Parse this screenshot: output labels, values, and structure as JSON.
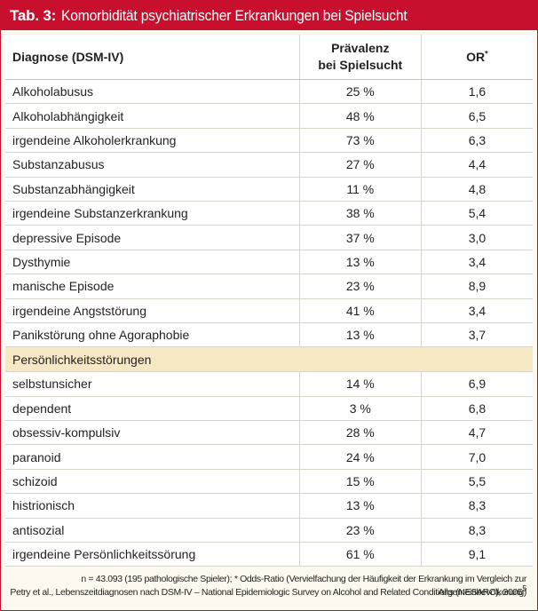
{
  "title": {
    "label": "Tab. 3:",
    "text": "Komorbidität psychiatrischer Erkrankungen bei Spielsucht"
  },
  "header": {
    "diagnosis": "Diagnose (DSM-IV)",
    "prevalence_line1": "Prävalenz",
    "prevalence_line2": "bei Spielsucht",
    "or": "OR",
    "or_mark": "*"
  },
  "rows_group1": [
    {
      "diagnosis": "Alkoholabusus",
      "prevalence": "25 %",
      "or": "1,6"
    },
    {
      "diagnosis": "Alkoholabhängigkeit",
      "prevalence": "48 %",
      "or": "6,5"
    },
    {
      "diagnosis": "irgendeine Alkoholerkrankung",
      "prevalence": "73 %",
      "or": "6,3"
    },
    {
      "diagnosis": "Substanzabusus",
      "prevalence": "27 %",
      "or": "4,4"
    },
    {
      "diagnosis": "Substanzabhängigkeit",
      "prevalence": "11 %",
      "or": "4,8"
    },
    {
      "diagnosis": "irgendeine Substanzerkrankung",
      "prevalence": "38 %",
      "or": "5,4"
    },
    {
      "diagnosis": "depressive Episode",
      "prevalence": "37 %",
      "or": "3,0"
    },
    {
      "diagnosis": "Dysthymie",
      "prevalence": "13 %",
      "or": "3,4"
    },
    {
      "diagnosis": "manische Episode",
      "prevalence": "23 %",
      "or": "8,9"
    },
    {
      "diagnosis": "irgendeine Angststörung",
      "prevalence": "41 %",
      "or": "3,4"
    },
    {
      "diagnosis": "Panikstörung ohne Agoraphobie",
      "prevalence": "13 %",
      "or": "3,7"
    }
  ],
  "section_label": "Persönlichkeitsstörungen",
  "rows_group2": [
    {
      "diagnosis": "selbstunsicher",
      "prevalence": "14 %",
      "or": "6,9"
    },
    {
      "diagnosis": "dependent",
      "prevalence": "3 %",
      "or": "6,8"
    },
    {
      "diagnosis": "obsessiv-kompulsiv",
      "prevalence": "28 %",
      "or": "4,7"
    },
    {
      "diagnosis": "paranoid",
      "prevalence": "24 %",
      "or": "7,0"
    },
    {
      "diagnosis": "schizoid",
      "prevalence": "15 %",
      "or": "5,5"
    },
    {
      "diagnosis": "histrionisch",
      "prevalence": "13 %",
      "or": "8,3"
    },
    {
      "diagnosis": "antisozial",
      "prevalence": "23 %",
      "or": "8,3"
    },
    {
      "diagnosis": "irgendeine Persönlichkeitssörung",
      "prevalence": "61 %",
      "or": "9,1"
    }
  ],
  "footnote": {
    "line1": "n = 43.093 (195 pathologische Spieler); * Odds-Ratio (Vervielfachung der Häufigkeit der Erkrankung im Vergleich zur Allgemeinbevölkerung)",
    "line2": "Petry et al., Lebenszeitdiagnosen nach DSM-IV – National Epidemiologic Survey on Alcohol and Related Conditions (NESARC), 2005",
    "line2_ref": "5"
  },
  "colors": {
    "title_bar": "#c8102e",
    "section_band": "#f6e8c4",
    "frame_bg": "#fdf9ee"
  }
}
